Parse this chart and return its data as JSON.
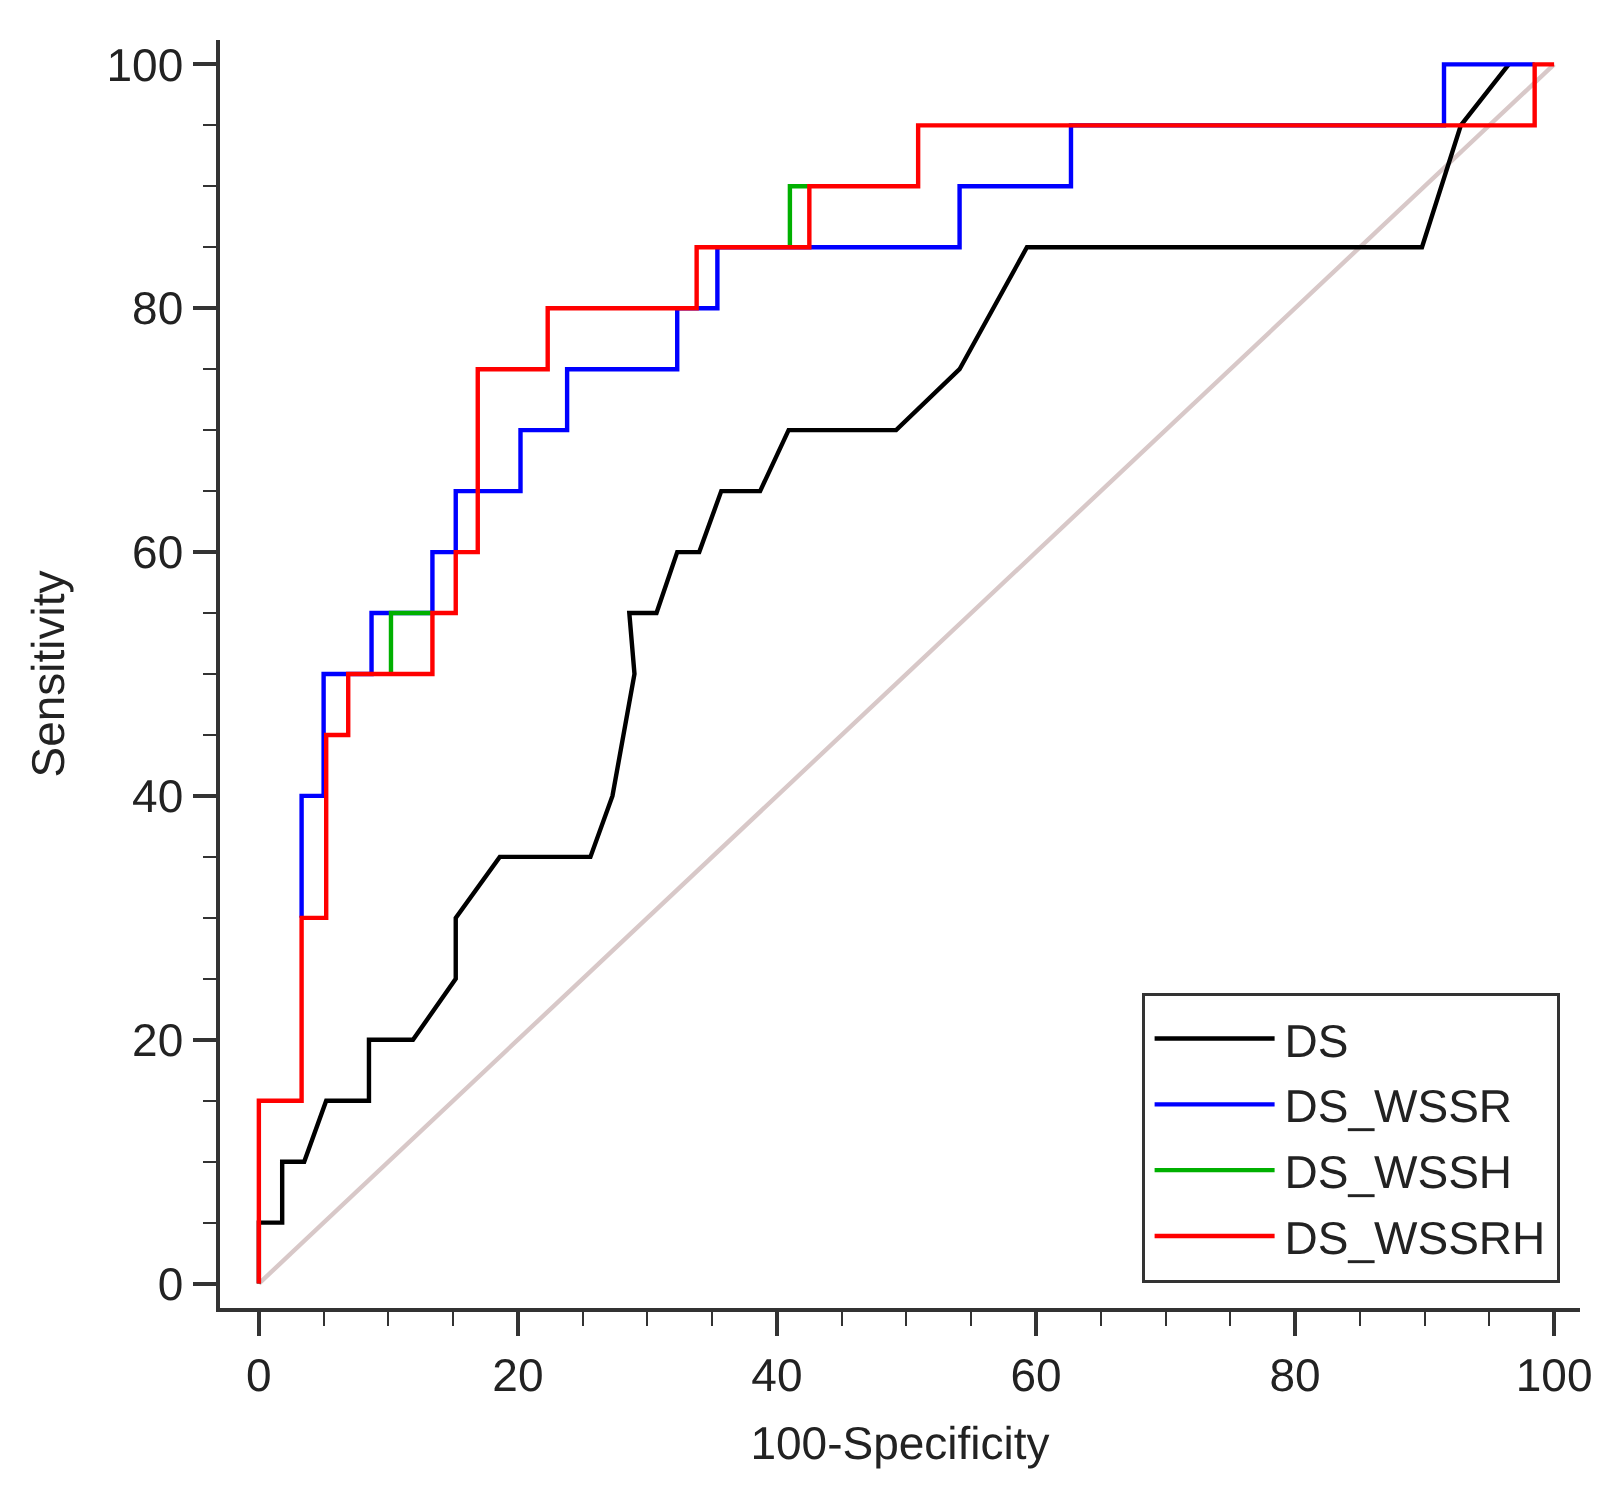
{
  "chart_data": {
    "type": "line",
    "xlabel": "100-Specificity",
    "ylabel": "Sensitivity",
    "xlim": [
      -3,
      102
    ],
    "ylim": [
      -2,
      102
    ],
    "xticks": [
      0,
      {
        "value": 5,
        "label": null
      },
      {
        "value": 10,
        "label": null
      },
      {
        "value": 15,
        "label": null
      },
      20,
      {
        "value": 25,
        "label": null
      },
      {
        "value": 30,
        "label": null
      },
      {
        "value": 35,
        "label": null
      },
      40,
      {
        "value": 45,
        "label": null
      },
      {
        "value": 50,
        "label": null
      },
      {
        "value": 55,
        "label": null
      },
      60,
      {
        "value": 65,
        "label": null
      },
      {
        "value": 70,
        "label": null
      },
      {
        "value": 75,
        "label": null
      },
      80,
      {
        "value": 85,
        "label": null
      },
      {
        "value": 90,
        "label": null
      },
      {
        "value": 95,
        "label": null
      },
      100
    ],
    "yticks": [
      0,
      {
        "value": 5,
        "label": null
      },
      {
        "value": 10,
        "label": null
      },
      {
        "value": 15,
        "label": null
      },
      20,
      {
        "value": 25,
        "label": null
      },
      {
        "value": 30,
        "label": null
      },
      {
        "value": 35,
        "label": null
      },
      40,
      {
        "value": 45,
        "label": null
      },
      {
        "value": 50,
        "label": null
      },
      {
        "value": 55,
        "label": null
      },
      60,
      {
        "value": 65,
        "label": null
      },
      {
        "value": 70,
        "label": null
      },
      {
        "value": 75,
        "label": null
      },
      80,
      {
        "value": 85,
        "label": null
      },
      {
        "value": 90,
        "label": null
      },
      {
        "value": 95,
        "label": null
      },
      100
    ],
    "legend": "bottom right",
    "marker": "none",
    "line_style": "solid",
    "series": [
      {
        "color": "#d8c8c8",
        "x": [
          0,
          100
        ],
        "values": [
          0,
          100
        ]
      },
      {
        "name": "DS",
        "color": "#000000",
        "x": [
          0,
          0,
          1.8,
          1.8,
          3.5,
          5.2,
          8.5,
          8.5,
          11.9,
          15.2,
          15.2,
          18.6,
          25.6,
          27.3,
          29,
          28.6,
          30.7,
          32.3,
          34,
          35.7,
          38.7,
          40.9,
          49.2,
          54.1,
          59.3,
          89.8,
          92.8,
          96.5
        ],
        "values": [
          0,
          5,
          5,
          10,
          10,
          15,
          15,
          20,
          20,
          25,
          30,
          35,
          35,
          40,
          50,
          55,
          55,
          60,
          60,
          65,
          65,
          70,
          70,
          75,
          85,
          85,
          95,
          100
        ]
      },
      {
        "name": "DS_WSSR",
        "color": "#0000ff",
        "x": [
          3.3,
          3.3,
          5,
          5,
          8.7,
          8.7,
          13.4,
          13.4,
          15.2,
          15.2,
          20.2,
          20.2,
          23.8,
          23.8,
          32.3,
          32.3,
          35.4,
          35.4,
          54.1,
          54.1,
          62.7,
          62.7,
          91.5,
          91.5,
          98.5
        ],
        "values": [
          30,
          40,
          40,
          50,
          50,
          55,
          55,
          60,
          60,
          65,
          65,
          70,
          70,
          75,
          75,
          80,
          80,
          85,
          85,
          90,
          90,
          95,
          95,
          100,
          100
        ]
      },
      {
        "name": "DS_WSSH",
        "color": "#00b000",
        "x": [
          10.2,
          10.2,
          13.4,
          20,
          41,
          41,
          42.5
        ],
        "values": [
          50,
          55,
          55,
          null,
          85,
          90,
          90
        ]
      },
      {
        "name": "DS_WSSRH",
        "color": "#ff0000",
        "x": [
          0,
          0,
          3.3,
          3.3,
          5.2,
          5.2,
          6.9,
          6.9,
          13.4,
          13.4,
          15.2,
          15.2,
          16.9,
          16.9,
          22.3,
          22.3,
          33.8,
          33.8,
          42.5,
          42.5,
          50.9,
          50.9,
          98.5,
          98.5,
          100
        ],
        "values": [
          0,
          15,
          15,
          30,
          30,
          45,
          45,
          50,
          50,
          55,
          55,
          60,
          60,
          75,
          75,
          80,
          80,
          85,
          85,
          90,
          90,
          95,
          95,
          100,
          100
        ]
      }
    ]
  }
}
